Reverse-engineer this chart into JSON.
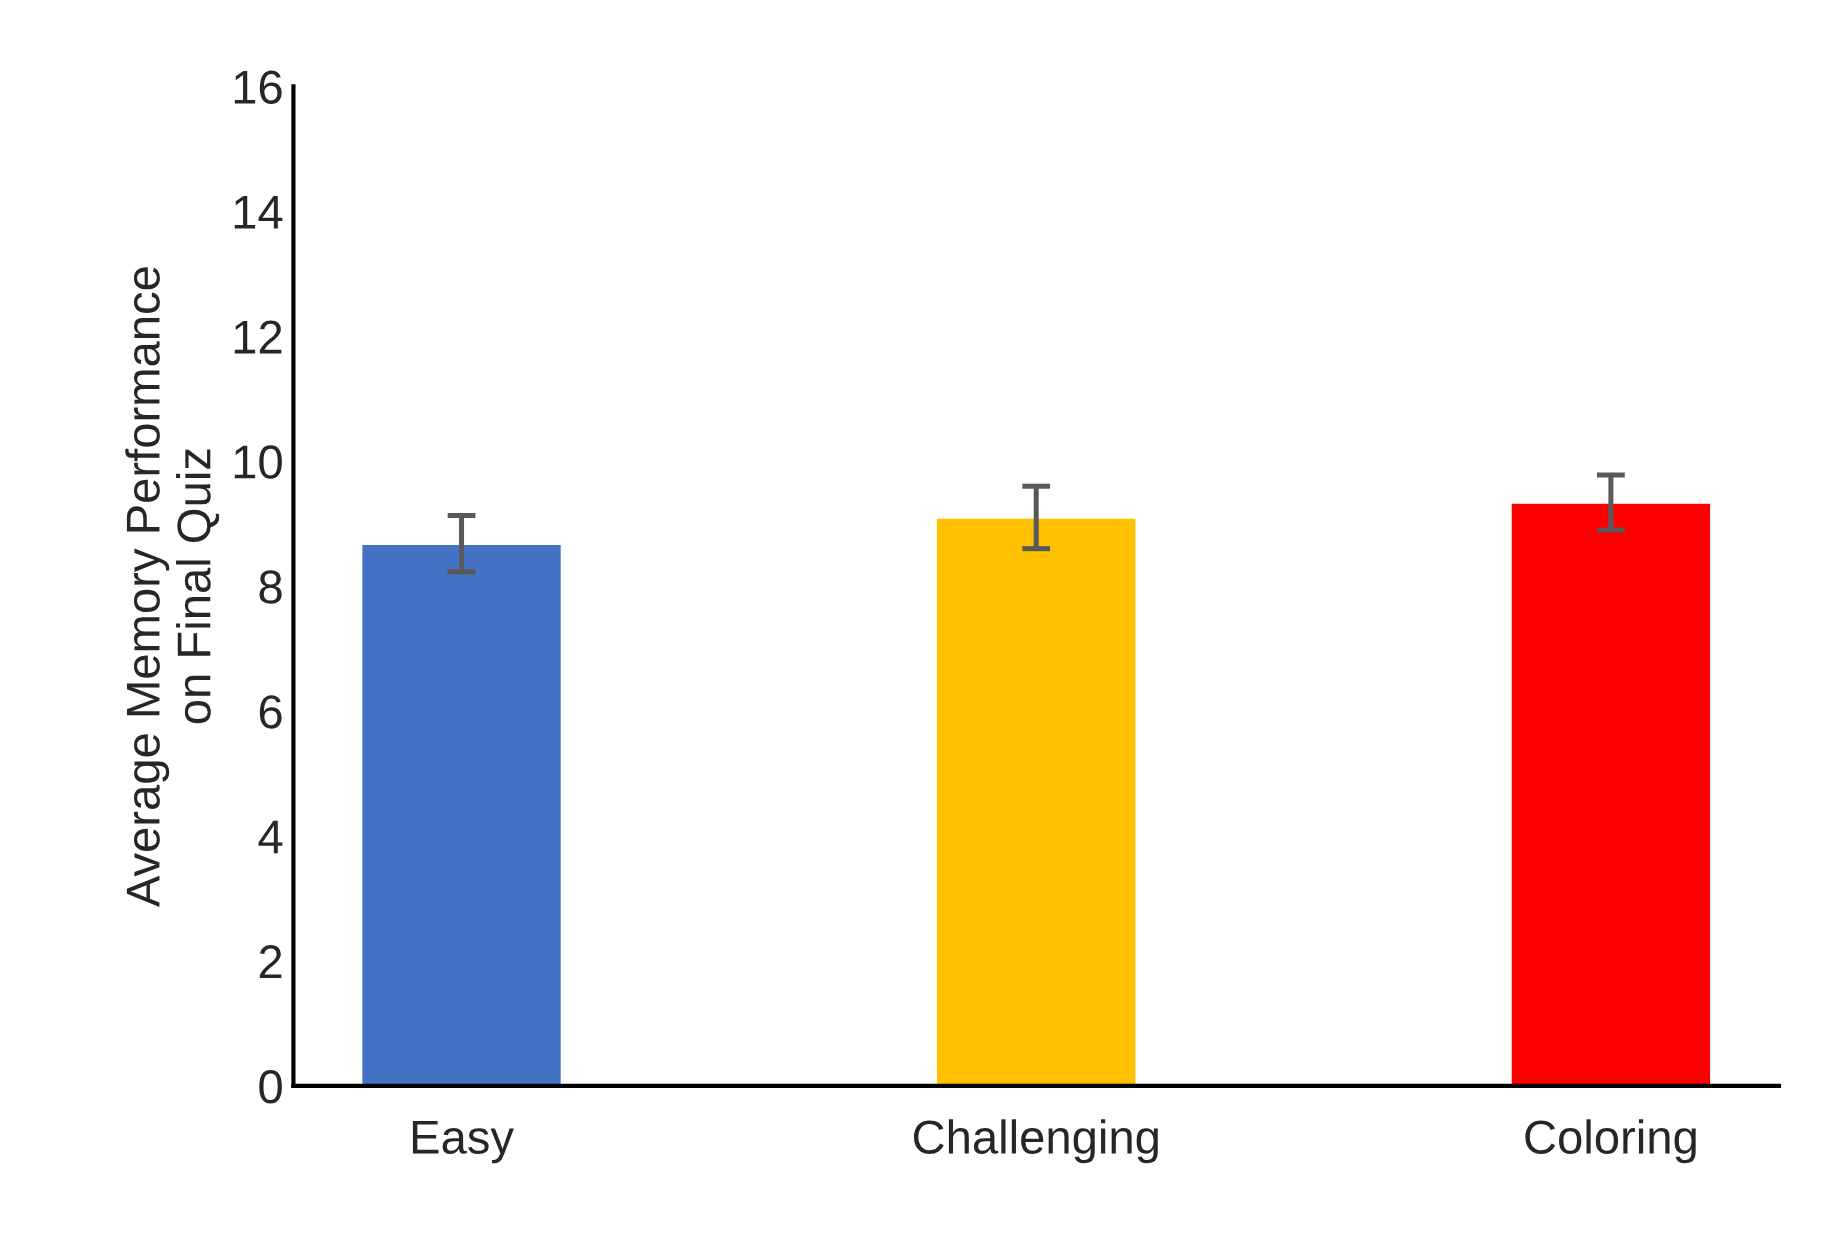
{
  "chart_data": {
    "type": "bar",
    "ylabel": "Average Memory Performance\non Final Quiz",
    "categories": [
      "Easy",
      "Challenging",
      "Coloring"
    ],
    "values": [
      8.68,
      9.1,
      9.34
    ],
    "errors": [
      0.45,
      0.5,
      0.44
    ],
    "colors": [
      "#4472c4",
      "#ffc000",
      "#ff0000"
    ],
    "ylim": [
      0,
      16
    ],
    "yticks": [
      0,
      2,
      4,
      6,
      8,
      10,
      12,
      14,
      16
    ],
    "grid": false
  }
}
